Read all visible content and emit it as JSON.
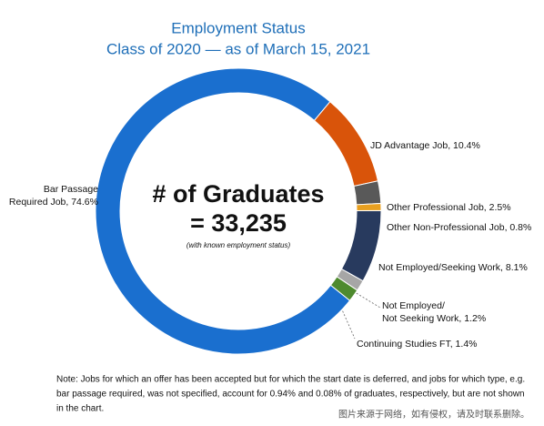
{
  "chart_data": {
    "type": "pie",
    "title": [
      "Employment Status",
      "Class of 2020  —  as of March 15, 2021"
    ],
    "categories": [
      [
        "Bar Passage",
        "Required Job, 74.6%"
      ],
      [
        "JD Advantage Job, 10.4%"
      ],
      [
        "Other Professional Job, 2.5%"
      ],
      [
        "Other Non-Professional Job, 0.8%"
      ],
      [
        "Not Employed/Seeking Work, 8.1%"
      ],
      [
        "Not Employed/",
        "Not Seeking Work, 1.2%"
      ],
      [
        "Continuing Studies FT, 1.4%"
      ]
    ],
    "values": [
      74.6,
      10.4,
      2.5,
      0.8,
      8.1,
      1.2,
      1.4
    ],
    "colors": [
      "#1a6fcf",
      "#d9540a",
      "#595959",
      "#e8a020",
      "#283a5e",
      "#a6a6a6",
      "#4e8a2e"
    ],
    "center_text": [
      "# of Graduates",
      "= 33,235",
      "(with known employment status)"
    ],
    "note": [
      "Note: Jobs for which an offer has been accepted but for which the start date is deferred, and jobs for which type, e.g.",
      "bar passage required, was not specified, account for 0.94% and 0.08% of graduates, respectively, but are not shown",
      "in the chart."
    ],
    "watermark": "图片来源于网络，如有侵权，请及时联系删除。"
  }
}
